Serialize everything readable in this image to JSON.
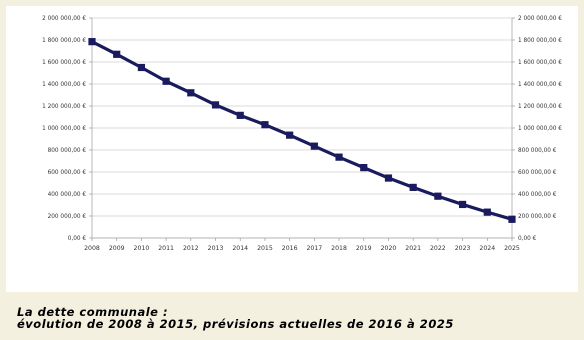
{
  "chart_data": {
    "type": "line",
    "title": "",
    "xlabel": "",
    "ylabel": "",
    "x": [
      "2008",
      "2009",
      "2010",
      "2011",
      "2012",
      "2013",
      "2014",
      "2015",
      "2016",
      "2017",
      "2018",
      "2019",
      "2020",
      "2021",
      "2022",
      "2023",
      "2024",
      "2025"
    ],
    "series": [
      {
        "name": "",
        "values": [
          1785000,
          1670000,
          1550000,
          1425000,
          1320000,
          1210000,
          1115000,
          1030000,
          935000,
          835000,
          735000,
          640000,
          545000,
          460000,
          380000,
          305000,
          235000,
          170000
        ]
      }
    ],
    "ylim": [
      0,
      2000000
    ],
    "yticks": [
      0,
      200000,
      400000,
      600000,
      800000,
      1000000,
      1200000,
      1400000,
      1600000,
      1800000,
      2000000
    ],
    "ytick_labels": [
      "0,00 €",
      "200 000,00 €",
      "400 000,00 €",
      "600 000,00 €",
      "800 000,00 €",
      "1 000 000,00 €",
      "1 200 000,00 €",
      "1 400 000,00 €",
      "1 600 000,00 €",
      "1 800 000,00 €",
      "2 000 000,00 €"
    ],
    "ytick_labels_right": [
      "0,00 €",
      "200 000,00 €",
      "400 000,00 €",
      "600 000,00 €",
      "800 000,00 €",
      "1 000 000,00 €",
      "1 200 000,00 €",
      "1 400 000,00 €",
      "1 600 000,00 €",
      "1 800 000,00 €",
      "2 000 000,00 €"
    ],
    "grid": true,
    "legend": "none",
    "line_color": "#1a1a5e",
    "grid_color": "#cfcfcf"
  },
  "caption": {
    "line1": "La dette communale :",
    "line2": "évolution de 2008 à 2015, prévisions actuelles de 2016 à 2025"
  }
}
